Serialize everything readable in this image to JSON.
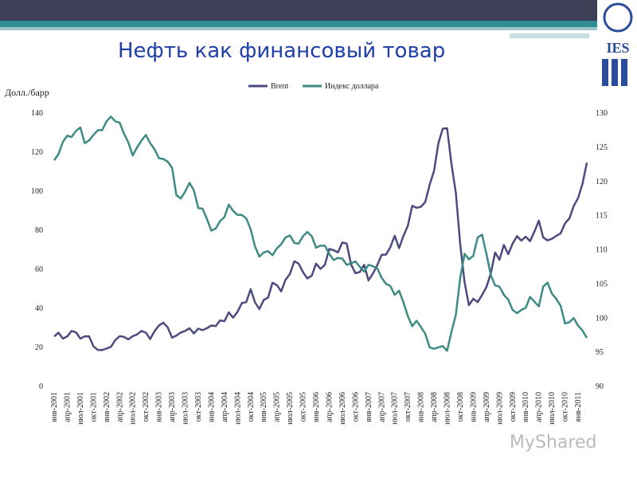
{
  "header": {
    "title": "Нефть как финансовый товар",
    "logo": "IES",
    "watermark": "MyShared"
  },
  "chart_data": {
    "type": "line",
    "y_axis_label": "Долл./барр",
    "categories": [
      "янв-2001",
      null,
      null,
      "апр-2001",
      null,
      null,
      "июл-2001",
      null,
      null,
      "окт-2001",
      null,
      null,
      "янв-2002",
      null,
      null,
      "апр-2002",
      null,
      null,
      "июл-2002",
      null,
      null,
      "окт-2002",
      null,
      null,
      "янв-2003",
      null,
      null,
      "апр-2003",
      null,
      null,
      "июл-2003",
      null,
      null,
      "окт-2003",
      null,
      null,
      "янв-2004",
      null,
      null,
      "апр-2004",
      null,
      null,
      "июл-2004",
      null,
      null,
      "окт-2004",
      null,
      null,
      "янв-2005",
      null,
      null,
      "апр-2005",
      null,
      null,
      "июл-2005",
      null,
      null,
      "окт-2005",
      null,
      null,
      "янв-2006",
      null,
      null,
      "апр-2006",
      null,
      null,
      "июл-2006",
      null,
      null,
      "окт-2006",
      null,
      null,
      "янв-2007",
      null,
      null,
      "апр-2007",
      null,
      null,
      "июл-2007",
      null,
      null,
      "окт-2007",
      null,
      null,
      "янв-2008",
      null,
      null,
      "апр-2008",
      null,
      null,
      "июл-2008",
      null,
      null,
      "окт-2008",
      null,
      null,
      "янв-2009",
      null,
      null,
      "апр-2009",
      null,
      null,
      "июл-2009",
      null,
      null,
      "окт-2009",
      null,
      null,
      "янв-2010",
      null,
      null,
      "апр-2010",
      null,
      null,
      "июл-2010",
      null,
      null,
      "окт-2010",
      null,
      null,
      "янв-2011",
      null,
      null
    ],
    "series": [
      {
        "name": "Brent",
        "color": "#4b4b80",
        "axis": "y",
        "values": [
          25.6,
          27.5,
          24.5,
          25.6,
          28.4,
          27.7,
          24.5,
          25.6,
          25.6,
          20.5,
          18.7,
          18.6,
          19.4,
          20.3,
          23.7,
          25.7,
          25.4,
          24.1,
          25.7,
          26.6,
          28.4,
          27.5,
          24.3,
          28.3,
          31.2,
          32.6,
          30.3,
          25.0,
          26.0,
          27.6,
          28.4,
          29.8,
          27.1,
          29.6,
          28.8,
          29.8,
          31.2,
          30.9,
          33.8,
          33.4,
          37.9,
          35.2,
          38.2,
          42.7,
          43.2,
          49.8,
          43.1,
          39.6,
          44.3,
          45.5,
          53.1,
          51.9,
          48.7,
          54.6,
          57.6,
          64.1,
          62.9,
          58.5,
          55.3,
          56.7,
          62.9,
          60.2,
          62.3,
          70.4,
          69.8,
          68.7,
          73.7,
          73.2,
          62.5,
          58.0,
          58.6,
          62.3,
          54.3,
          57.8,
          62.1,
          67.4,
          67.5,
          71.3,
          77.2,
          70.8,
          77.1,
          82.3,
          92.5,
          91.5,
          92.0,
          94.5,
          103.3,
          110.4,
          124.6,
          132.0,
          132.3,
          113.9,
          99.1,
          72.8,
          53.2,
          41.6,
          44.9,
          43.2,
          46.8,
          50.9,
          57.9,
          68.6,
          64.9,
          72.5,
          67.7,
          73.2,
          77.0,
          74.7,
          76.7,
          74.4,
          79.3,
          84.9,
          76.3,
          74.8,
          75.6,
          77.1,
          78.4,
          83.5,
          86.1,
          92.4,
          96.5,
          103.7,
          114.6
        ]
      },
      {
        "name": "Индекс доллара",
        "color": "#3e8a84",
        "axis": "y2",
        "values": [
          123.1,
          124.0,
          125.8,
          126.7,
          126.5,
          127.4,
          127.9,
          125.6,
          126.0,
          126.8,
          127.5,
          127.5,
          128.8,
          129.5,
          128.8,
          128.6,
          127.0,
          125.7,
          123.8,
          125.0,
          126.0,
          126.8,
          125.6,
          124.7,
          123.4,
          123.3,
          122.9,
          122.0,
          118.0,
          117.5,
          118.5,
          119.8,
          118.7,
          116.1,
          116.0,
          114.5,
          112.8,
          113.1,
          114.2,
          114.8,
          116.6,
          115.7,
          115.1,
          115.1,
          114.6,
          113.0,
          110.5,
          109.0,
          109.6,
          109.8,
          109.2,
          110.2,
          110.8,
          111.8,
          112.1,
          111.0,
          110.9,
          112.0,
          112.6,
          112.0,
          110.3,
          110.6,
          110.6,
          109.4,
          108.5,
          108.8,
          108.7,
          107.8,
          108.0,
          108.3,
          107.5,
          106.8,
          107.8,
          107.6,
          107.3,
          105.9,
          105.0,
          104.7,
          103.4,
          104.0,
          102.3,
          100.3,
          98.8,
          99.6,
          98.7,
          97.7,
          95.7,
          95.5,
          95.7,
          95.9,
          95.2,
          98.0,
          100.5,
          105.9,
          109.4,
          108.6,
          109.1,
          111.8,
          112.2,
          109.4,
          106.3,
          104.8,
          104.6,
          103.4,
          102.7,
          101.2,
          100.7,
          101.2,
          101.5,
          103.1,
          102.4,
          101.7,
          104.6,
          105.2,
          103.6,
          102.8,
          101.8,
          99.2,
          99.4,
          100.0,
          98.9,
          98.2,
          97.1
        ]
      }
    ],
    "ylim": [
      0,
      140
    ],
    "yticks": [
      0,
      20,
      40,
      60,
      80,
      100,
      120,
      140
    ],
    "y2lim": [
      90,
      130
    ],
    "y2ticks": [
      90,
      95,
      100,
      105,
      110,
      115,
      120,
      125,
      130
    ],
    "legend": "top",
    "grid": false
  }
}
